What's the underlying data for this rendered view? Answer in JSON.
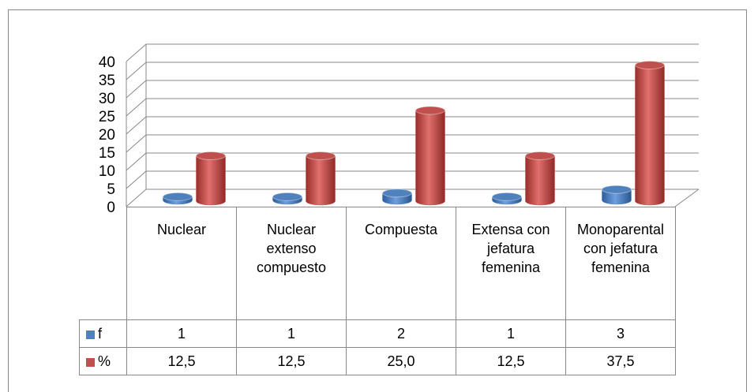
{
  "chart_data": {
    "type": "bar3d",
    "categories": [
      "Nuclear",
      "Nuclear extenso compuesto",
      "Compuesta",
      "Extensa con jefatura femenina",
      "Monoparental con jefatura femenina"
    ],
    "series": [
      {
        "name": "f",
        "color": "#4f81bd",
        "values": [
          1,
          1,
          2,
          1,
          3
        ]
      },
      {
        "name": "%",
        "color": "#c0504d",
        "values": [
          12.5,
          12.5,
          25.0,
          12.5,
          37.5
        ],
        "value_labels": [
          "12,5",
          "12,5",
          "25,0",
          "12,5",
          "37,5"
        ]
      }
    ],
    "ylim": [
      0,
      40
    ],
    "yticks": [
      0,
      5,
      10,
      15,
      20,
      25,
      30,
      35,
      40
    ],
    "grid": true
  }
}
